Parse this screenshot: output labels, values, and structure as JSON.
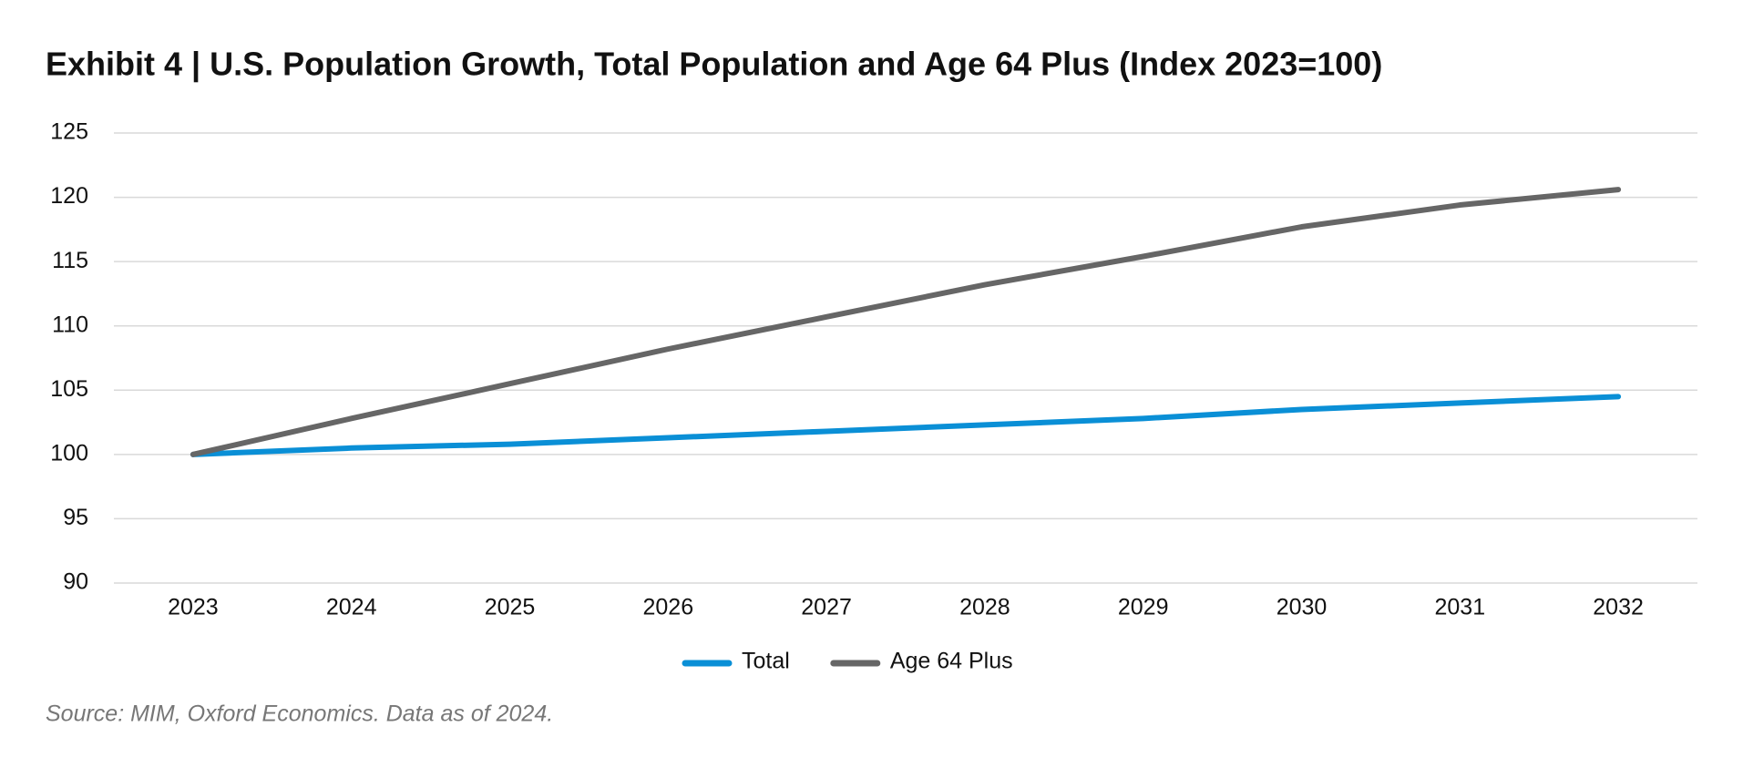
{
  "chart_data": {
    "type": "line",
    "title": "Exhibit 4  |  U.S. Population Growth, Total Population and Age 64 Plus (Index 2023=100)",
    "source": "Source: MIM, Oxford Economics. Data as of 2024.",
    "categories": [
      "2023",
      "2024",
      "2025",
      "2026",
      "2027",
      "2028",
      "2029",
      "2030",
      "2031",
      "2032"
    ],
    "series": [
      {
        "name": "Total",
        "color": "#0a8fd6",
        "values": [
          100,
          100.5,
          100.8,
          101.3,
          101.8,
          102.3,
          102.8,
          103.5,
          104.0,
          104.5
        ]
      },
      {
        "name": "Age 64 Plus",
        "color": "#666666",
        "values": [
          100,
          102.8,
          105.5,
          108.2,
          110.7,
          113.2,
          115.4,
          117.7,
          119.4,
          120.6
        ]
      }
    ],
    "ylim": [
      90,
      125
    ],
    "yticks": [
      90,
      95,
      100,
      105,
      110,
      115,
      120,
      125
    ],
    "grid": true
  }
}
